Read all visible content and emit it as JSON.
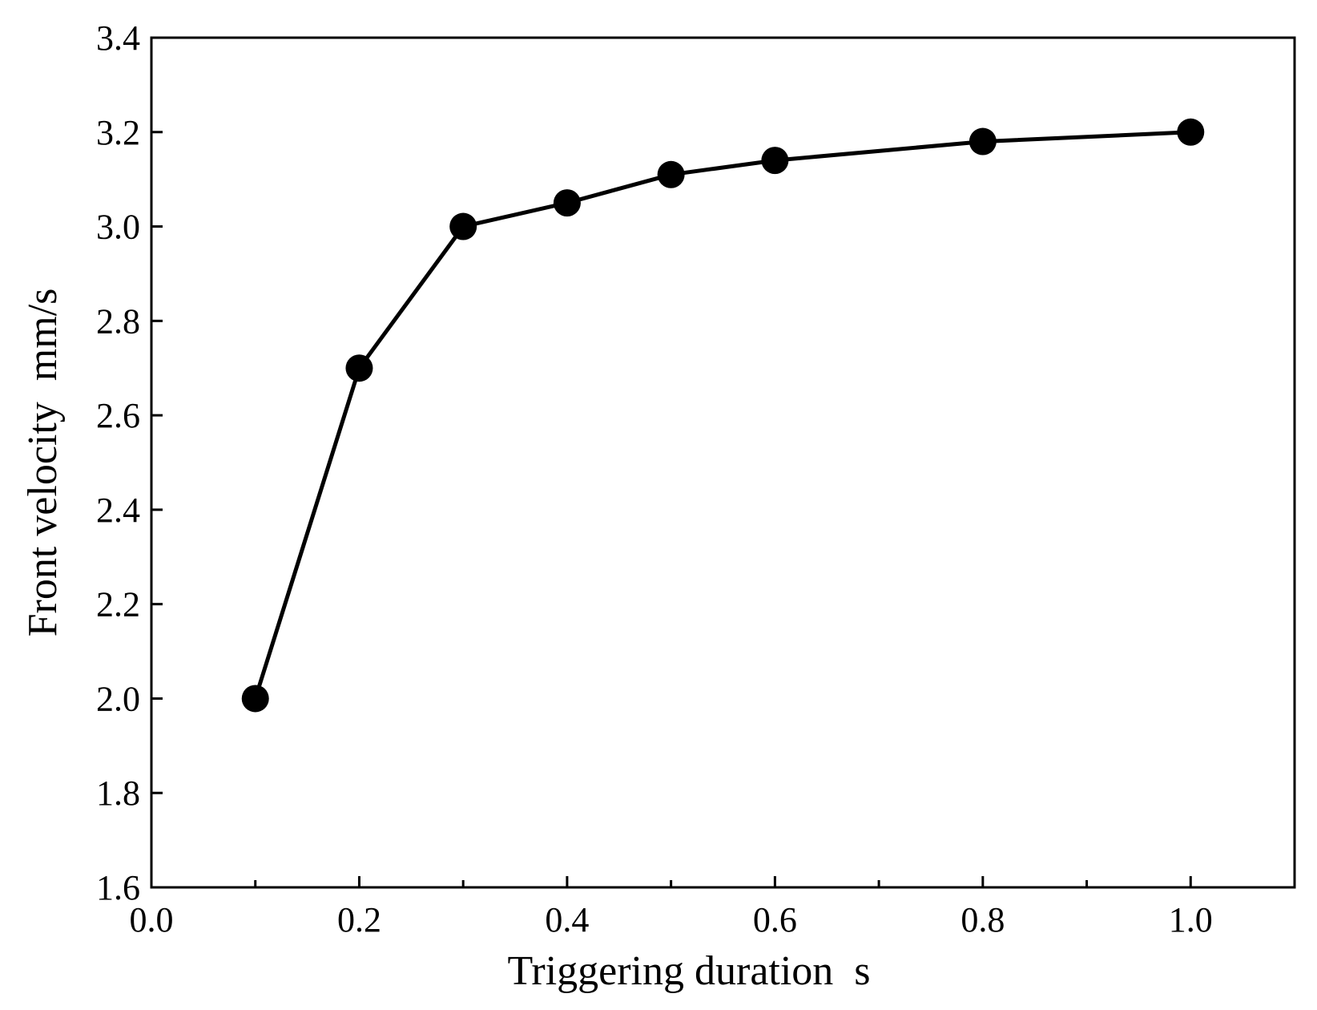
{
  "chart_data": {
    "type": "line",
    "xlabel": "Triggering duration  s",
    "ylabel": "Front velocity  mm/s",
    "xlim": [
      0.0,
      1.1
    ],
    "ylim": [
      1.6,
      3.4
    ],
    "x_ticks": [
      "0.0",
      "0.2",
      "0.4",
      "0.6",
      "0.8",
      "1.0"
    ],
    "x_tick_values": [
      0.0,
      0.2,
      0.4,
      0.6,
      0.8,
      1.0
    ],
    "x_minor_tick_values": [
      0.1,
      0.3,
      0.5,
      0.7,
      0.9
    ],
    "y_ticks": [
      "1.6",
      "1.8",
      "2.0",
      "2.2",
      "2.4",
      "2.6",
      "2.8",
      "3.0",
      "3.2",
      "3.4"
    ],
    "y_tick_values": [
      1.6,
      1.8,
      2.0,
      2.2,
      2.4,
      2.6,
      2.8,
      3.0,
      3.2,
      3.4
    ],
    "grid": false,
    "legend": "none",
    "series": [
      {
        "x": [
          0.1,
          0.2,
          0.3,
          0.4,
          0.5,
          0.6,
          0.8,
          1.0
        ],
        "y": [
          2.0,
          2.7,
          3.0,
          3.05,
          3.11,
          3.14,
          3.18,
          3.2
        ],
        "marker": "filled-circle",
        "color": "#000000"
      }
    ]
  }
}
